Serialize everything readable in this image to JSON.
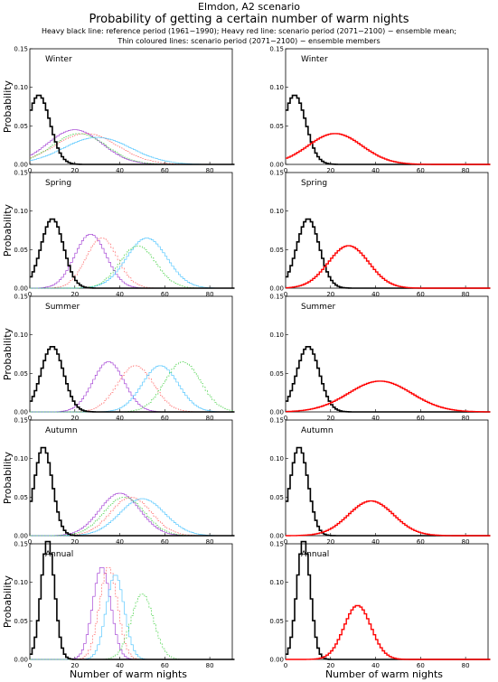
{
  "figure": {
    "title_line1": "Elmdon, A2 scenario",
    "title_line2": "Probability of getting a certain number of warm nights",
    "legend_line1": "Heavy black line: reference period (1961−1990); Heavy red line: scenario period (2071−2100) − ensemble mean;",
    "legend_line2": "Thin coloured lines: scenario period (2071−2100) − ensemble members",
    "ylabel": "Probability",
    "xlabel": "Number of warm nights",
    "colors": {
      "reference": "#000000",
      "ensemble_mean": "#ff0000",
      "members": [
        "#9b30d0",
        "#ff6060",
        "#40c0ff",
        "#40d040",
        "#c0e040",
        "#2020ff",
        "#000000",
        "#a020f0"
      ]
    }
  },
  "chart_data": [
    {
      "type": "line",
      "panel": "left",
      "season": "Winter",
      "xlim": [
        0,
        90
      ],
      "ylim": [
        0,
        0.15
      ],
      "xticks": [
        "0",
        "20",
        "40",
        "60",
        "80"
      ],
      "yticks": [
        "0.00",
        "0.05",
        "0.10",
        "0.15"
      ],
      "series": [
        {
          "role": "reference",
          "peak_x": 4,
          "peak_y": 0.09,
          "width": 5
        },
        {
          "role": "member",
          "peak_x": 20,
          "peak_y": 0.045,
          "width": 12
        },
        {
          "role": "member",
          "peak_x": 25,
          "peak_y": 0.04,
          "width": 14
        },
        {
          "role": "member",
          "peak_x": 30,
          "peak_y": 0.035,
          "width": 15
        },
        {
          "role": "member",
          "peak_x": 22,
          "peak_y": 0.04,
          "width": 12
        }
      ]
    },
    {
      "type": "line",
      "panel": "right",
      "season": "Winter",
      "xlim": [
        0,
        90
      ],
      "ylim": [
        0,
        0.15
      ],
      "xticks": [
        "0",
        "20",
        "40",
        "60",
        "80"
      ],
      "yticks": [
        "0.00",
        "0.05",
        "0.10",
        "0.15"
      ],
      "series": [
        {
          "role": "reference",
          "peak_x": 4,
          "peak_y": 0.09,
          "width": 5
        },
        {
          "role": "ensemble_mean",
          "peak_x": 22,
          "peak_y": 0.04,
          "width": 12
        }
      ]
    },
    {
      "type": "line",
      "panel": "left",
      "season": "Spring",
      "xlim": [
        0,
        90
      ],
      "ylim": [
        0,
        0.15
      ],
      "xticks": [
        "0",
        "20",
        "40",
        "60",
        "80"
      ],
      "yticks": [
        "0.00",
        "0.05",
        "0.10",
        "0.15"
      ],
      "series": [
        {
          "role": "reference",
          "peak_x": 10,
          "peak_y": 0.09,
          "width": 5
        },
        {
          "role": "member",
          "peak_x": 27,
          "peak_y": 0.07,
          "width": 7
        },
        {
          "role": "member",
          "peak_x": 32,
          "peak_y": 0.065,
          "width": 7
        },
        {
          "role": "member",
          "peak_x": 52,
          "peak_y": 0.065,
          "width": 9
        },
        {
          "role": "member",
          "peak_x": 48,
          "peak_y": 0.055,
          "width": 8
        }
      ]
    },
    {
      "type": "line",
      "panel": "right",
      "season": "Spring",
      "xlim": [
        0,
        90
      ],
      "ylim": [
        0,
        0.15
      ],
      "xticks": [
        "0",
        "20",
        "40",
        "60",
        "80"
      ],
      "yticks": [
        "0.00",
        "0.05",
        "0.10",
        "0.15"
      ],
      "series": [
        {
          "role": "reference",
          "peak_x": 10,
          "peak_y": 0.09,
          "width": 5
        },
        {
          "role": "ensemble_mean",
          "peak_x": 28,
          "peak_y": 0.055,
          "width": 9
        }
      ]
    },
    {
      "type": "line",
      "panel": "left",
      "season": "Summer",
      "xlim": [
        0,
        90
      ],
      "ylim": [
        0,
        0.15
      ],
      "xticks": [
        "0",
        "20",
        "40",
        "60",
        "80"
      ],
      "yticks": [
        "0.00",
        "0.05",
        "0.10",
        "0.15"
      ],
      "series": [
        {
          "role": "reference",
          "peak_x": 10,
          "peak_y": 0.085,
          "width": 5
        },
        {
          "role": "member",
          "peak_x": 35,
          "peak_y": 0.065,
          "width": 7
        },
        {
          "role": "member",
          "peak_x": 47,
          "peak_y": 0.06,
          "width": 8
        },
        {
          "role": "member",
          "peak_x": 58,
          "peak_y": 0.06,
          "width": 8
        },
        {
          "role": "member",
          "peak_x": 68,
          "peak_y": 0.065,
          "width": 8
        }
      ]
    },
    {
      "type": "line",
      "panel": "right",
      "season": "Summer",
      "xlim": [
        0,
        90
      ],
      "ylim": [
        0,
        0.15
      ],
      "xticks": [
        "0",
        "20",
        "40",
        "60",
        "80"
      ],
      "yticks": [
        "0.00",
        "0.05",
        "0.10",
        "0.15"
      ],
      "series": [
        {
          "role": "reference",
          "peak_x": 10,
          "peak_y": 0.085,
          "width": 5
        },
        {
          "role": "ensemble_mean",
          "peak_x": 42,
          "peak_y": 0.04,
          "width": 14
        }
      ]
    },
    {
      "type": "line",
      "panel": "left",
      "season": "Autumn",
      "xlim": [
        0,
        90
      ],
      "ylim": [
        0,
        0.15
      ],
      "xticks": [
        "0",
        "20",
        "40",
        "60",
        "80"
      ],
      "yticks": [
        "0.00",
        "0.05",
        "0.10",
        "0.15"
      ],
      "series": [
        {
          "role": "reference",
          "peak_x": 6,
          "peak_y": 0.115,
          "width": 4
        },
        {
          "role": "member",
          "peak_x": 40,
          "peak_y": 0.055,
          "width": 9
        },
        {
          "role": "member",
          "peak_x": 45,
          "peak_y": 0.05,
          "width": 9
        },
        {
          "role": "member",
          "peak_x": 50,
          "peak_y": 0.048,
          "width": 10
        },
        {
          "role": "member",
          "peak_x": 42,
          "peak_y": 0.05,
          "width": 9
        }
      ]
    },
    {
      "type": "line",
      "panel": "right",
      "season": "Autumn",
      "xlim": [
        0,
        90
      ],
      "ylim": [
        0,
        0.15
      ],
      "xticks": [
        "0",
        "20",
        "40",
        "60",
        "80"
      ],
      "yticks": [
        "0.00",
        "0.05",
        "0.10",
        "0.15"
      ],
      "series": [
        {
          "role": "reference",
          "peak_x": 6,
          "peak_y": 0.115,
          "width": 4
        },
        {
          "role": "ensemble_mean",
          "peak_x": 38,
          "peak_y": 0.045,
          "width": 10
        }
      ]
    },
    {
      "type": "line",
      "panel": "left",
      "season": "Annual",
      "xlim": [
        0,
        90
      ],
      "ylim": [
        0,
        0.15
      ],
      "xticks": [
        "0",
        "20",
        "40",
        "60",
        "80"
      ],
      "yticks": [
        "0.00",
        "0.05",
        "0.10",
        "0.15"
      ],
      "series": [
        {
          "role": "reference",
          "peak_x": 8,
          "peak_y": 0.155,
          "width": 3
        },
        {
          "role": "member",
          "peak_x": 32,
          "peak_y": 0.12,
          "width": 4
        },
        {
          "role": "member",
          "peak_x": 35,
          "peak_y": 0.12,
          "width": 4
        },
        {
          "role": "member",
          "peak_x": 38,
          "peak_y": 0.11,
          "width": 4
        },
        {
          "role": "member",
          "peak_x": 50,
          "peak_y": 0.085,
          "width": 5
        }
      ]
    },
    {
      "type": "line",
      "panel": "right",
      "season": "Annual",
      "xlim": [
        0,
        90
      ],
      "ylim": [
        0,
        0.15
      ],
      "xticks": [
        "0",
        "20",
        "40",
        "60",
        "80"
      ],
      "yticks": [
        "0.00",
        "0.05",
        "0.10",
        "0.15"
      ],
      "series": [
        {
          "role": "reference",
          "peak_x": 8,
          "peak_y": 0.155,
          "width": 3
        },
        {
          "role": "ensemble_mean",
          "peak_x": 32,
          "peak_y": 0.07,
          "width": 6
        }
      ]
    }
  ]
}
